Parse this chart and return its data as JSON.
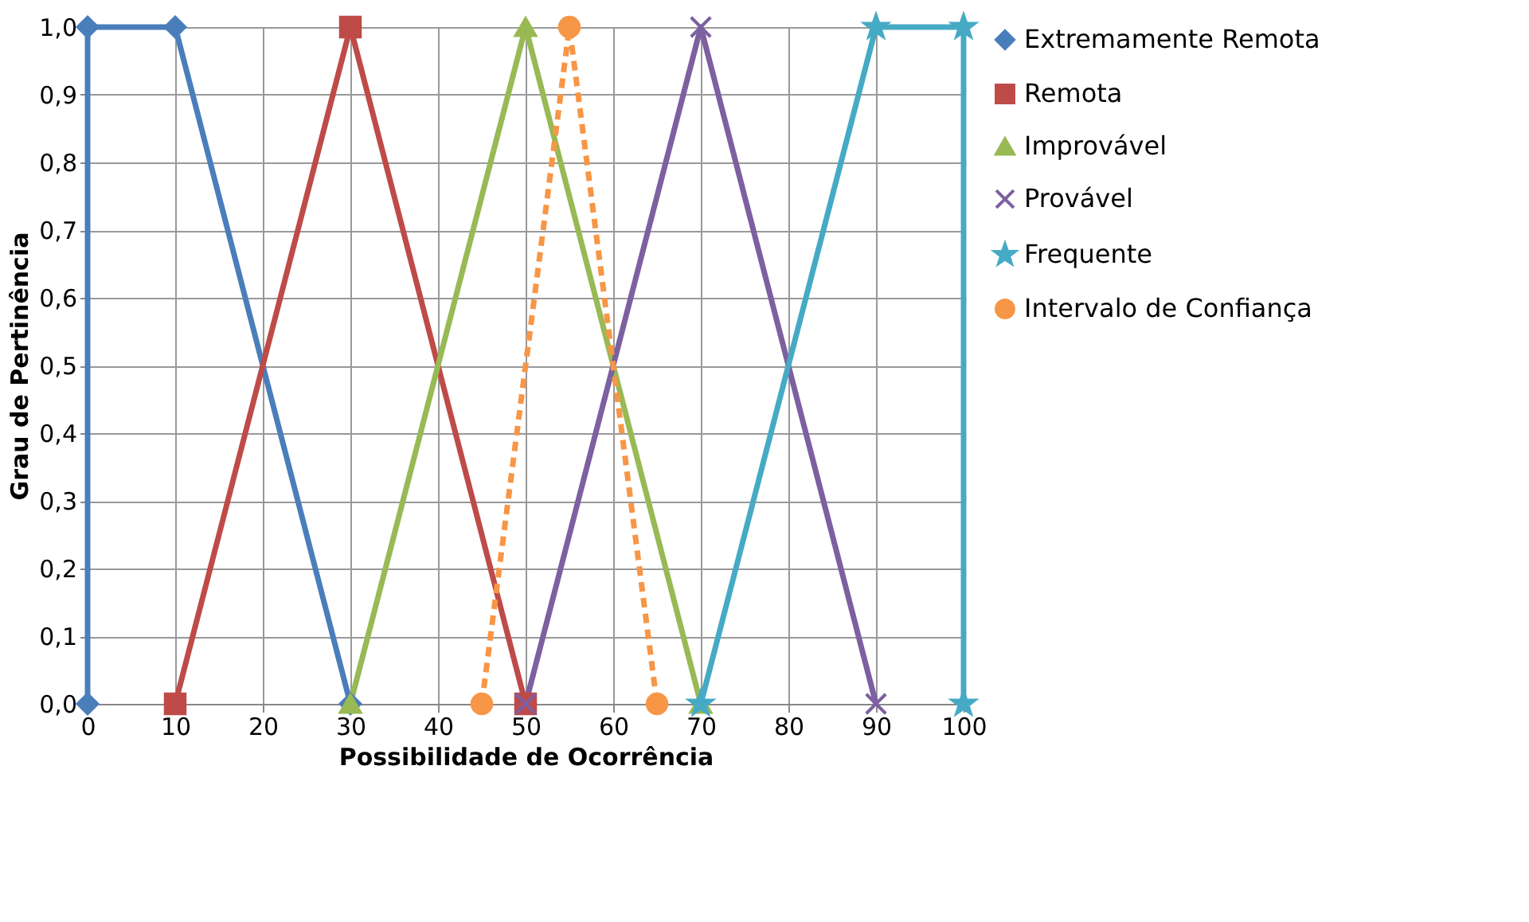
{
  "chart_data": {
    "type": "line",
    "xlabel": "Possibilidade de Ocorrência",
    "ylabel": "Grau de Pertinência",
    "xlim": [
      0,
      100
    ],
    "xticks": [
      0,
      10,
      20,
      30,
      40,
      50,
      60,
      70,
      80,
      90,
      100
    ],
    "ylim": [
      0,
      1
    ],
    "yticks": [
      {
        "value": 0,
        "label": "0,0"
      },
      {
        "value": 0.1,
        "label": "0,1"
      },
      {
        "value": 0.2,
        "label": "0,2"
      },
      {
        "value": 0.3,
        "label": "0,3"
      },
      {
        "value": 0.4,
        "label": "0,4"
      },
      {
        "value": 0.5,
        "label": "0,5"
      },
      {
        "value": 0.6,
        "label": "0,6"
      },
      {
        "value": 0.7,
        "label": "0,7"
      },
      {
        "value": 0.8,
        "label": "0,8"
      },
      {
        "value": 0.9,
        "label": "0,9"
      },
      {
        "value": 1,
        "label": "1,0"
      }
    ],
    "grid": true,
    "legend": "right",
    "series": [
      {
        "name": "Extremamente Remota",
        "color": "#4a7ebb",
        "marker": "diamond",
        "line_style": "solid",
        "x": [
          0,
          0,
          10,
          30
        ],
        "values": [
          0,
          1,
          1,
          0
        ]
      },
      {
        "name": "Remota",
        "color": "#be4b48",
        "marker": "square",
        "line_style": "solid",
        "x": [
          10,
          30,
          50
        ],
        "values": [
          0,
          1,
          0
        ]
      },
      {
        "name": "Improvável",
        "color": "#98b954",
        "marker": "triangle",
        "line_style": "solid",
        "x": [
          30,
          50,
          70
        ],
        "values": [
          0,
          1,
          0
        ]
      },
      {
        "name": "Provável",
        "color": "#7d60a0",
        "marker": "cross",
        "line_style": "solid",
        "x": [
          50,
          70,
          90
        ],
        "values": [
          0,
          1,
          0
        ]
      },
      {
        "name": "Frequente",
        "color": "#46aac5",
        "marker": "star",
        "line_style": "solid",
        "x": [
          70,
          90,
          100,
          100
        ],
        "values": [
          0,
          1,
          1,
          0
        ]
      },
      {
        "name": "Intervalo de Confiança",
        "color": "#f79646",
        "marker": "circle",
        "line_style": "dashed",
        "x": [
          45,
          55,
          65
        ],
        "values": [
          0,
          1,
          0
        ]
      }
    ]
  }
}
